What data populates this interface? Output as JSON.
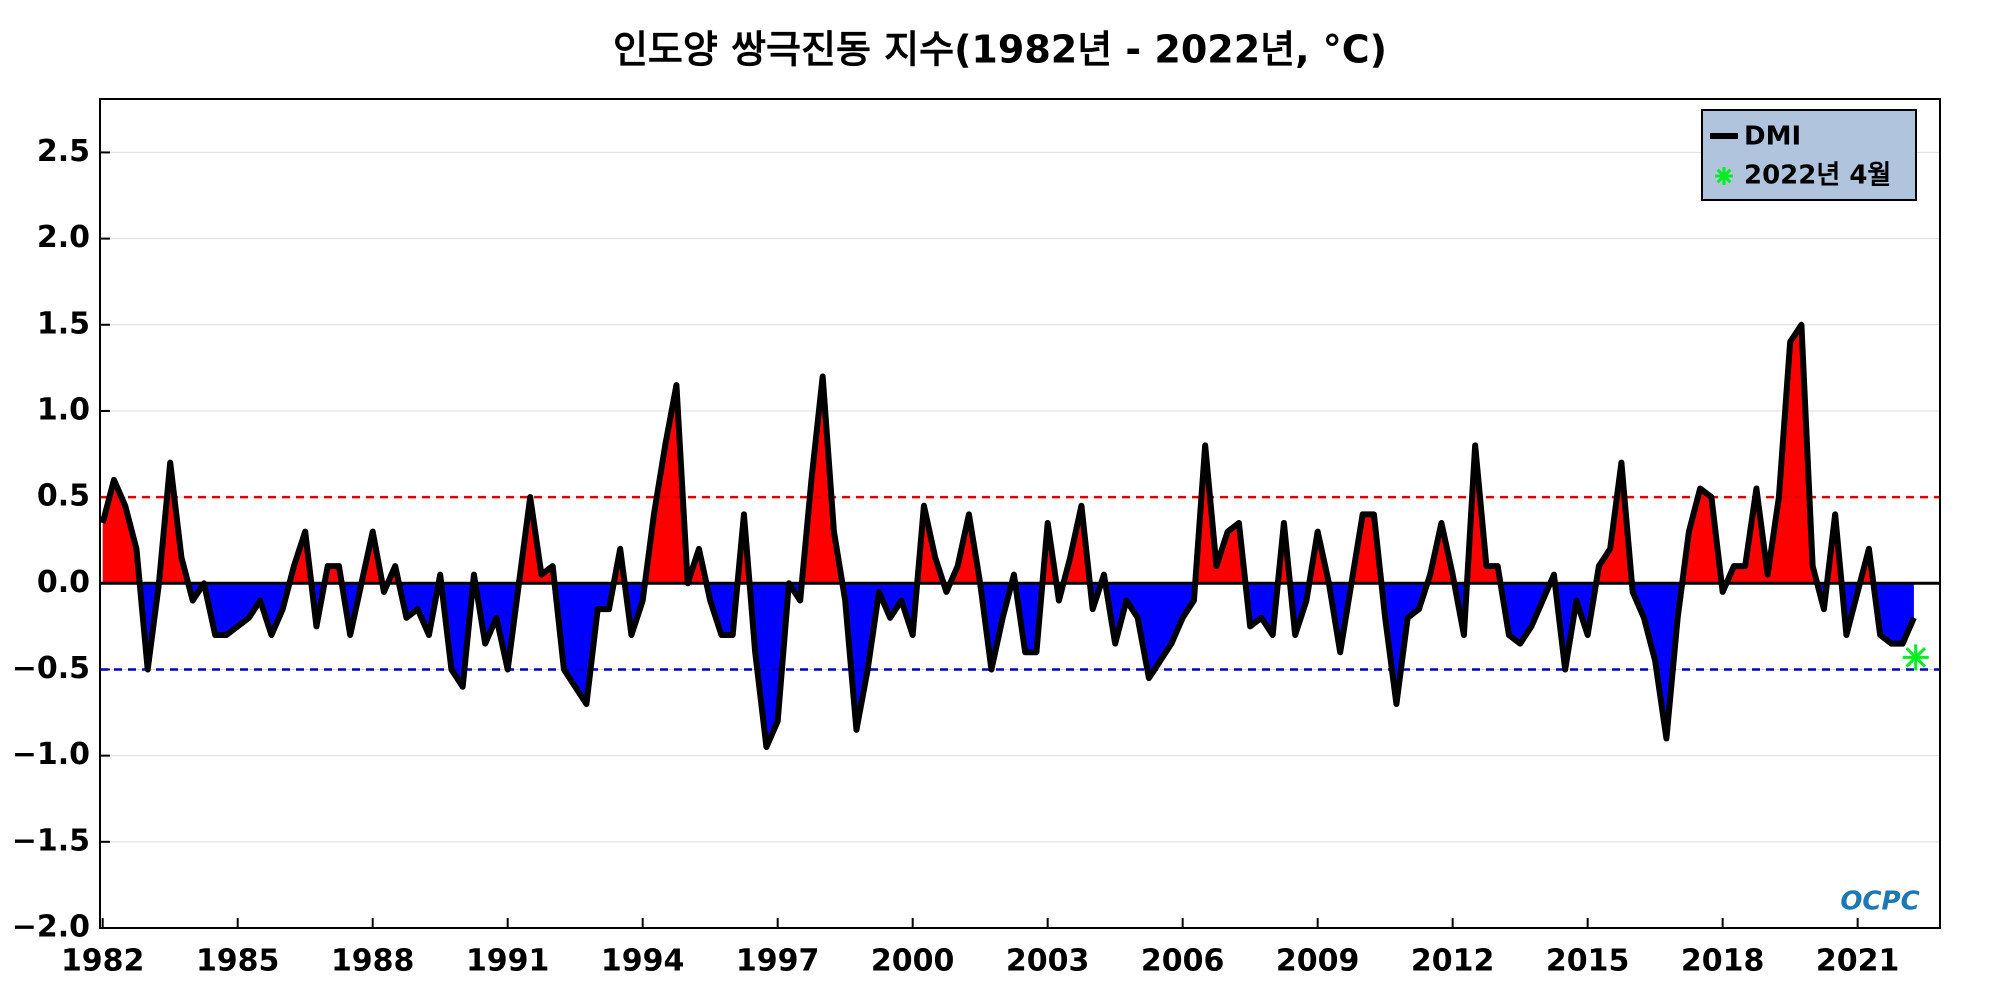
{
  "chart_data": {
    "type": "line",
    "title": "인도양 쌍극진동 지수(1982년 - 2022년, °C)",
    "xlim": [
      1981.94,
      2022.83
    ],
    "ylim": [
      -2.0,
      2.81
    ],
    "xticks": [
      1982,
      1985,
      1988,
      1991,
      1994,
      1997,
      2000,
      2003,
      2006,
      2009,
      2012,
      2015,
      2018,
      2021
    ],
    "yticks": [
      {
        "value": -2.0,
        "label": "−2.0"
      },
      {
        "value": -1.5,
        "label": "−1.5"
      },
      {
        "value": -1.0,
        "label": "−1.0"
      },
      {
        "value": -0.5,
        "label": "−0.5"
      },
      {
        "value": 0,
        "label": "0.0"
      },
      0.5,
      {
        "value": 1.0,
        "label": "1.0"
      },
      1.5,
      {
        "value": 2.0,
        "label": "2.0"
      },
      2.5
    ],
    "grid": true,
    "hlines": [
      {
        "value": 0.5,
        "color": "#e00000"
      },
      {
        "value": -0.5,
        "color": "#0000c0"
      }
    ],
    "fill_above": "#ff0000",
    "fill_below": "#0000ff",
    "legend": "upper right",
    "logo": "OCPC",
    "x": [
      1982,
      1982.25,
      1982.5,
      1982.75,
      1983,
      1983.25,
      1983.5,
      1983.75,
      1984,
      1984.25,
      1984.5,
      1984.75,
      1985,
      1985.25,
      1985.5,
      1985.75,
      1986,
      1986.25,
      1986.5,
      1986.75,
      1987,
      1987.25,
      1987.5,
      1987.75,
      1988,
      1988.25,
      1988.5,
      1988.75,
      1989,
      1989.25,
      1989.5,
      1989.75,
      1990,
      1990.25,
      1990.5,
      1990.75,
      1991,
      1991.25,
      1991.5,
      1991.75,
      1992,
      1992.25,
      1992.5,
      1992.75,
      1993,
      1993.25,
      1993.5,
      1993.75,
      1994,
      1994.25,
      1994.5,
      1994.75,
      1995,
      1995.25,
      1995.5,
      1995.75,
      1996,
      1996.25,
      1996.5,
      1996.75,
      1997,
      1997.25,
      1997.5,
      1997.75,
      1998,
      1998.25,
      1998.5,
      1998.75,
      1999,
      1999.25,
      1999.5,
      1999.75,
      2000,
      2000.25,
      2000.5,
      2000.75,
      2001,
      2001.25,
      2001.5,
      2001.75,
      2002,
      2002.25,
      2002.5,
      2002.75,
      2003,
      2003.25,
      2003.5,
      2003.75,
      2004,
      2004.25,
      2004.5,
      2004.75,
      2005,
      2005.25,
      2005.5,
      2005.75,
      2006,
      2006.25,
      2006.5,
      2006.75,
      2007,
      2007.25,
      2007.5,
      2007.75,
      2008,
      2008.25,
      2008.5,
      2008.75,
      2009,
      2009.25,
      2009.5,
      2009.75,
      2010,
      2010.25,
      2010.5,
      2010.75,
      2011,
      2011.25,
      2011.5,
      2011.75,
      2012,
      2012.25,
      2012.5,
      2012.75,
      2013,
      2013.25,
      2013.5,
      2013.75,
      2014,
      2014.25,
      2014.5,
      2014.75,
      2015,
      2015.25,
      2015.5,
      2015.75,
      2016,
      2016.25,
      2016.5,
      2016.75,
      2017,
      2017.25,
      2017.5,
      2017.75,
      2018,
      2018.25,
      2018.5,
      2018.75,
      2019,
      2019.25,
      2019.5,
      2019.75,
      2020,
      2020.25,
      2020.5,
      2020.75,
      2021,
      2021.25,
      2021.5,
      2021.75,
      2022,
      2022.25
    ],
    "series": [
      {
        "name": "DMI",
        "color": "#000000",
        "values": [
          0.35,
          0.6,
          0.45,
          0.2,
          -0.5,
          0.0,
          0.7,
          0.15,
          -0.1,
          0.0,
          -0.3,
          -0.3,
          -0.25,
          -0.2,
          -0.1,
          -0.3,
          -0.15,
          0.1,
          0.3,
          -0.25,
          0.1,
          0.1,
          -0.3,
          0.0,
          0.3,
          -0.05,
          0.1,
          -0.2,
          -0.15,
          -0.3,
          0.05,
          -0.5,
          -0.6,
          0.05,
          -0.35,
          -0.2,
          -0.5,
          0.0,
          0.5,
          0.05,
          0.1,
          -0.5,
          -0.6,
          -0.7,
          -0.15,
          -0.15,
          0.2,
          -0.3,
          -0.1,
          0.4,
          0.8,
          1.15,
          0.0,
          0.2,
          -0.1,
          -0.3,
          -0.3,
          0.4,
          -0.4,
          -0.95,
          -0.8,
          0.0,
          -0.1,
          0.6,
          1.2,
          0.3,
          -0.1,
          -0.85,
          -0.5,
          -0.05,
          -0.2,
          -0.1,
          -0.3,
          0.45,
          0.15,
          -0.05,
          0.1,
          0.4,
          0.0,
          -0.5,
          -0.2,
          0.05,
          -0.4,
          -0.4,
          0.35,
          -0.1,
          0.15,
          0.45,
          -0.15,
          0.05,
          -0.35,
          -0.1,
          -0.2,
          -0.55,
          -0.45,
          -0.35,
          -0.2,
          -0.1,
          0.8,
          0.1,
          0.3,
          0.35,
          -0.25,
          -0.2,
          -0.3,
          0.35,
          -0.3,
          -0.1,
          0.3,
          0.0,
          -0.4,
          0.0,
          0.4,
          0.4,
          -0.2,
          -0.7,
          -0.2,
          -0.15,
          0.05,
          0.35,
          0.05,
          -0.3,
          0.8,
          0.1,
          0.1,
          -0.3,
          -0.35,
          -0.25,
          -0.1,
          0.05,
          -0.5,
          -0.1,
          -0.3,
          0.1,
          0.2,
          0.7,
          -0.05,
          -0.2,
          -0.45,
          -0.9,
          -0.2,
          0.3,
          0.55,
          0.5,
          -0.05,
          0.1,
          0.1,
          0.55,
          0.05,
          0.5,
          1.4,
          1.5,
          0.1,
          -0.15,
          0.4,
          -0.3,
          -0.05,
          0.2,
          -0.3,
          -0.35,
          -0.35,
          -0.2
        ]
      }
    ],
    "highlight": {
      "name": "2022년 4월",
      "color": "#00ee22",
      "x": 2022.29,
      "value": -0.43
    }
  }
}
